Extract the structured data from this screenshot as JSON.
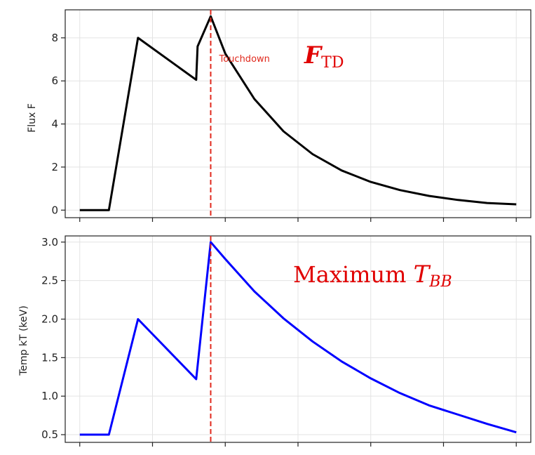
{
  "colors": {
    "flux_line": "#000000",
    "temp_line": "#0000ff",
    "touchdown_line": "#e0281c",
    "annotation": "#e00000"
  },
  "chart_data": [
    {
      "type": "line",
      "ylabel": "Flux F",
      "ylim": [
        -0.35,
        9.3
      ],
      "xlim": [
        -0.2,
        6.2
      ],
      "yticks": [
        "0",
        "2",
        "4",
        "6",
        "8"
      ],
      "xticks": [
        0,
        1,
        2,
        3,
        4,
        5,
        6
      ],
      "grid": true,
      "series": [
        {
          "x": [
            0.0,
            0.4,
            0.8,
            1.6,
            1.62,
            1.8,
            2.0,
            2.4,
            2.8,
            3.2,
            3.6,
            4.0,
            4.4,
            4.8,
            5.2,
            5.6,
            6.0
          ],
          "y": [
            0.0,
            0.0,
            8.0,
            6.05,
            7.6,
            9.0,
            7.27,
            5.16,
            3.66,
            2.6,
            1.84,
            1.31,
            0.93,
            0.66,
            0.47,
            0.33,
            0.27
          ]
        }
      ],
      "vline": {
        "x": 1.8,
        "label": "Touchdown"
      },
      "annotation": {
        "main": "F",
        "sub": "TD"
      }
    },
    {
      "type": "line",
      "ylabel": "Temp kT (keV)",
      "ylim": [
        0.4,
        3.08
      ],
      "xlim": [
        -0.2,
        6.2
      ],
      "yticks": [
        "0.5",
        "1.0",
        "1.5",
        "2.0",
        "2.5",
        "3.0"
      ],
      "xticks": [
        0,
        1,
        2,
        3,
        4,
        5,
        6
      ],
      "grid": true,
      "series": [
        {
          "x": [
            0.0,
            0.4,
            0.8,
            1.6,
            1.8,
            2.0,
            2.4,
            2.8,
            3.2,
            3.6,
            4.0,
            4.4,
            4.8,
            5.2,
            5.6,
            6.0
          ],
          "y": [
            0.5,
            0.5,
            2.0,
            1.22,
            3.0,
            2.78,
            2.36,
            2.01,
            1.71,
            1.45,
            1.23,
            1.04,
            0.88,
            0.76,
            0.64,
            0.53
          ]
        }
      ],
      "vline": {
        "x": 1.8
      },
      "annotation": {
        "main": "Maximum ",
        "var": "T",
        "sub": "BB"
      }
    }
  ]
}
